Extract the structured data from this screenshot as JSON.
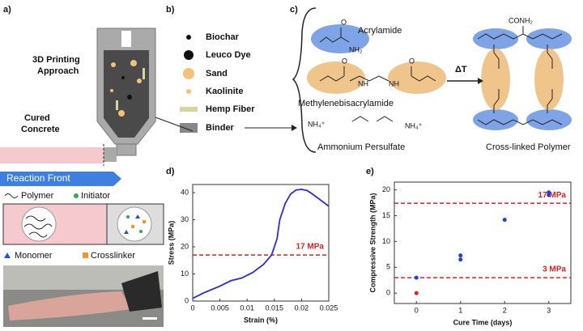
{
  "panel_labels": [
    "a)",
    "b)",
    "c)",
    "d)",
    "e)"
  ],
  "panel_a": {
    "title": [
      "3D Printing",
      "Approach"
    ],
    "cured": [
      "Cured",
      "Concrete"
    ],
    "front": "Reaction Front",
    "legend": [
      "Polymer",
      "Initiator",
      "Monomer",
      "Crosslinker"
    ]
  },
  "panel_b": {
    "legend": [
      "Biochar",
      "Leuco Dye",
      "Sand",
      "Kaolinite",
      "Hemp Fiber",
      "Binder"
    ]
  },
  "panel_c": {
    "acrylamide": "Acrylamide",
    "mba": "Methylenebisacrylamide",
    "aps": "Ammonium Persulfate",
    "product": "Cross-linked Polymer",
    "heat": "ΔT",
    "nh2": "NH₂",
    "conh2": "CONH₂",
    "nh": "NH",
    "o": "O",
    "nh4": "NH₄⁺"
  },
  "chart_data": [
    {
      "type": "line",
      "xlabel": "Strain (%)",
      "ylabel": "Stress (MPa)",
      "xlim": [
        0,
        0.025
      ],
      "ylim": [
        0,
        43
      ],
      "xticks": [
        0,
        0.005,
        0.01,
        0.015,
        0.02,
        0.025
      ],
      "yticks": [
        0,
        10,
        20,
        30,
        40
      ],
      "series": [
        {
          "color": "#2b2bd6",
          "x": [
            0,
            0.002,
            0.005,
            0.007,
            0.009,
            0.011,
            0.013,
            0.0145,
            0.0155,
            0.016,
            0.017,
            0.018,
            0.019,
            0.02,
            0.021,
            0.022,
            0.023,
            0.024,
            0.025
          ],
          "values": [
            1,
            3,
            5.5,
            7.5,
            8.5,
            10.5,
            13.5,
            17,
            23,
            30,
            36,
            39.5,
            41,
            41.2,
            40.8,
            39.5,
            38,
            36.5,
            35
          ]
        }
      ],
      "ref_lines": [
        {
          "value": 17,
          "label": "17 MPa",
          "color": "#e02020"
        }
      ]
    },
    {
      "type": "scatter",
      "xlabel": "Cure Time (days)",
      "ylabel": "Compressive Strength (MPa)",
      "xlim": [
        -0.5,
        3.5
      ],
      "ylim": [
        -2,
        21.5
      ],
      "xticks": [
        0,
        1,
        2,
        3
      ],
      "yticks": [
        0,
        5,
        10,
        15,
        20
      ],
      "series": [
        {
          "color": "#1f3fd8",
          "x": [
            0,
            1,
            1,
            2,
            3,
            3
          ],
          "values": [
            3,
            7.3,
            6.5,
            14.2,
            19.5,
            19
          ]
        },
        {
          "color": "#e02020",
          "x": [
            0
          ],
          "values": [
            0
          ]
        }
      ],
      "ref_lines": [
        {
          "value": 17.4,
          "label": "17 MPa",
          "color": "#e02020"
        },
        {
          "value": 3,
          "label": "3 MPa",
          "color": "#e02020"
        }
      ]
    }
  ]
}
